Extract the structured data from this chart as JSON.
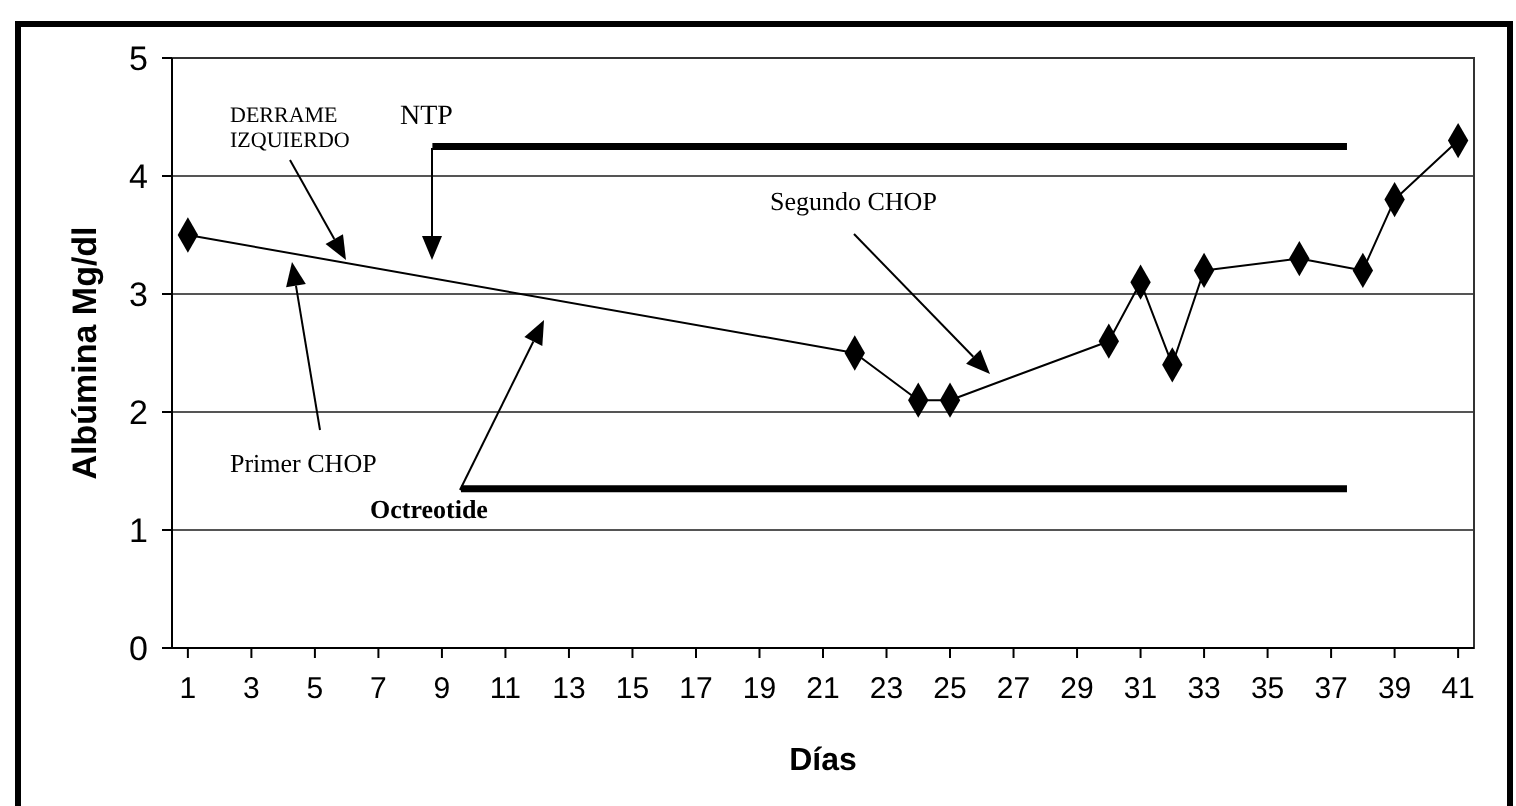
{
  "chart_data": {
    "type": "line",
    "xlabel": "Días",
    "ylabel": "Albúmina Mg/dl",
    "xlim": [
      0.5,
      41.5
    ],
    "xticks": [
      1,
      3,
      5,
      7,
      9,
      11,
      13,
      15,
      17,
      19,
      21,
      23,
      25,
      27,
      29,
      31,
      33,
      35,
      37,
      39,
      41
    ],
    "ylim": [
      0,
      5
    ],
    "yticks": [
      0,
      1,
      2,
      3,
      4,
      5
    ],
    "grid": "y",
    "marker": "diamond",
    "line_style": "solid",
    "series": [
      {
        "color": "#000000",
        "x": [
          1,
          22,
          24,
          25,
          30,
          31,
          32,
          33,
          36,
          38,
          39,
          41
        ],
        "values": [
          3.5,
          2.5,
          2.1,
          2.1,
          2.6,
          3.1,
          2.4,
          3.2,
          3.3,
          3.2,
          3.8,
          4.3
        ]
      },
      {
        "color": "#000000",
        "marker": "none",
        "x": [
          8.7,
          37.5
        ],
        "values": [
          4.25,
          4.25
        ]
      },
      {
        "color": "#000000",
        "marker": "none",
        "x": [
          9.6,
          37.5
        ],
        "values": [
          1.35,
          1.35
        ]
      }
    ],
    "annotations": [
      "DERRAME\nIZQUIERDO",
      "NTP",
      "Primer CHOP",
      "Octreotide",
      "Segundo CHOP"
    ]
  }
}
